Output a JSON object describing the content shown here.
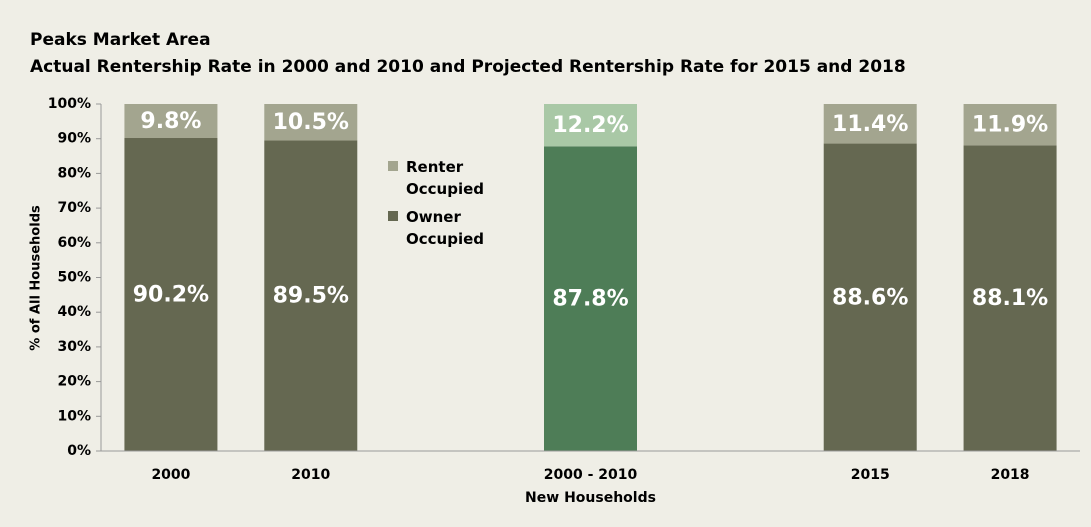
{
  "chart_data": {
    "type": "stacked_bar",
    "title": "Peaks Market Area",
    "subtitle": "Actual Rentership Rate in 2000 and 2010 and Projected Rentership Rate for 2015 and 2018",
    "ylabel": "% of All Households",
    "categories": [
      "2000",
      "2010",
      null,
      "2000 - 2010",
      null,
      "2015",
      "2018"
    ],
    "category_note": "New Households",
    "series": [
      {
        "name": "Owner Occupied",
        "color": "#656851",
        "colors": [
          "#656851",
          "#656851",
          null,
          "#4e7d57",
          null,
          "#656851",
          "#656851"
        ],
        "values": [
          90.2,
          89.5,
          null,
          87.8,
          null,
          88.6,
          88.1
        ],
        "value_labels": [
          "90.2%",
          "89.5%",
          null,
          "87.8%",
          null,
          "88.6%",
          "88.1%"
        ]
      },
      {
        "name": "Renter Occupied",
        "color": "#a3a58f",
        "colors": [
          "#a3a58f",
          "#a3a58f",
          null,
          "#a9c8a6",
          null,
          "#a3a58f",
          "#a3a58f"
        ],
        "values": [
          9.8,
          10.5,
          null,
          12.2,
          null,
          11.4,
          11.9
        ],
        "value_labels": [
          "9.8%",
          "10.5%",
          null,
          "12.2%",
          null,
          "11.4%",
          "11.9%"
        ]
      }
    ],
    "ylim": [
      0,
      100
    ],
    "yticks": [
      {
        "value": 0,
        "label": "0%"
      },
      {
        "value": 10,
        "label": "10%"
      },
      {
        "value": 20,
        "label": "20%"
      },
      {
        "value": 30,
        "label": "30%"
      },
      {
        "value": 40,
        "label": "40%"
      },
      {
        "value": 50,
        "label": "50%"
      },
      {
        "value": 60,
        "label": "60%"
      },
      {
        "value": 70,
        "label": "70%"
      },
      {
        "value": 80,
        "label": "80%"
      },
      {
        "value": 90,
        "label": "90%"
      },
      {
        "value": 100,
        "label": "100%"
      }
    ],
    "grid": false,
    "legend": "center"
  }
}
